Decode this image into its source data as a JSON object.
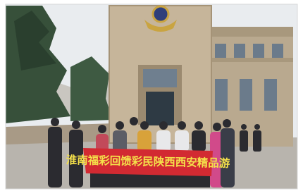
{
  "photo": {
    "banner": "淮南福彩回馈彩民陕西西安精品游"
  }
}
